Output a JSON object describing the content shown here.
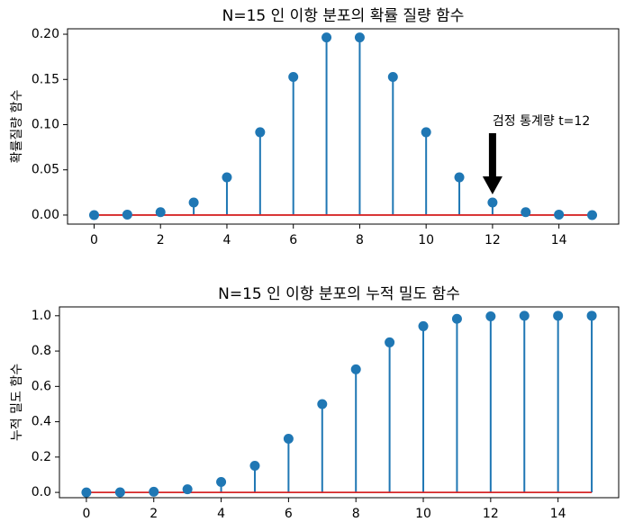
{
  "chart_data": [
    {
      "type": "stem",
      "title": "N=15 인 이항 분포의 확률 질량 함수",
      "xlabel": "",
      "ylabel": "확률질량 함수",
      "x": [
        0,
        1,
        2,
        3,
        4,
        5,
        6,
        7,
        8,
        9,
        10,
        11,
        12,
        13,
        14,
        15
      ],
      "values": [
        0.0,
        0.0005,
        0.0032,
        0.0139,
        0.0417,
        0.0916,
        0.1527,
        0.1964,
        0.1964,
        0.1527,
        0.0916,
        0.0417,
        0.0139,
        0.0032,
        0.0005,
        0.0
      ],
      "xlim": [
        -0.8,
        15.8
      ],
      "ylim": [
        -0.01,
        0.206
      ],
      "xticks": [
        0,
        2,
        4,
        6,
        8,
        10,
        12,
        14
      ],
      "xtick_labels": [
        "0",
        "2",
        "4",
        "6",
        "8",
        "10",
        "12",
        "14"
      ],
      "yticks": [
        0.0,
        0.05,
        0.1,
        0.15,
        0.2
      ],
      "ytick_labels": [
        "0.00",
        "0.05",
        "0.10",
        "0.15",
        "0.20"
      ],
      "baseline_color": "#d62728",
      "stem_color": "#1f77b4",
      "annotation": {
        "text": "검정 통계량 t=12",
        "x": 12,
        "y": 0.0139
      }
    },
    {
      "type": "stem",
      "title": "N=15 인 이항 분포의 누적 밀도 함수",
      "xlabel": "",
      "ylabel": "누적 밀도 함수",
      "x": [
        0,
        1,
        2,
        3,
        4,
        5,
        6,
        7,
        8,
        9,
        10,
        11,
        12,
        13,
        14,
        15
      ],
      "values": [
        0.0,
        0.0005,
        0.0037,
        0.0176,
        0.0592,
        0.1509,
        0.3036,
        0.5,
        0.6964,
        0.8491,
        0.9408,
        0.9824,
        0.9963,
        0.9995,
        1.0,
        1.0
      ],
      "xlim": [
        -0.8,
        15.8
      ],
      "ylim": [
        -0.03,
        1.05
      ],
      "xticks": [
        0,
        2,
        4,
        6,
        8,
        10,
        12,
        14
      ],
      "xtick_labels": [
        "0",
        "2",
        "4",
        "6",
        "8",
        "10",
        "12",
        "14"
      ],
      "yticks": [
        0.0,
        0.2,
        0.4,
        0.6,
        0.8,
        1.0
      ],
      "ytick_labels": [
        "0.0",
        "0.2",
        "0.4",
        "0.6",
        "0.8",
        "1.0"
      ],
      "baseline_color": "#d62728",
      "stem_color": "#1f77b4"
    }
  ]
}
